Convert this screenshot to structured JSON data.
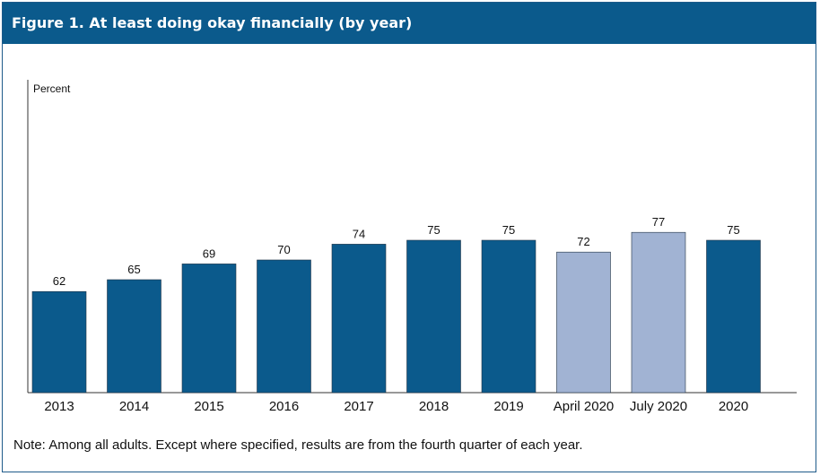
{
  "chart_data": {
    "type": "bar",
    "title": "Figure 1. At least doing okay financially (by year)",
    "ylabel": "Percent",
    "xlabel": "",
    "ylim": [
      0,
      80
    ],
    "categories": [
      "2013",
      "2014",
      "2015",
      "2016",
      "2017",
      "2018",
      "2019",
      "April 2020",
      "July 2020",
      "2020"
    ],
    "values": [
      62,
      65,
      69,
      70,
      74,
      75,
      75,
      72,
      77,
      75
    ],
    "highlight": [
      false,
      false,
      false,
      false,
      false,
      false,
      false,
      true,
      true,
      false
    ],
    "grid": false,
    "note": "Note: Among all adults. Except where specified, results are from the fourth quarter of each year."
  },
  "colors": {
    "primary_bar": "#0b5a8c",
    "highlight_bar": "#a1b3d3",
    "axis": "#333333",
    "title_bg": "#0b5a8c"
  }
}
